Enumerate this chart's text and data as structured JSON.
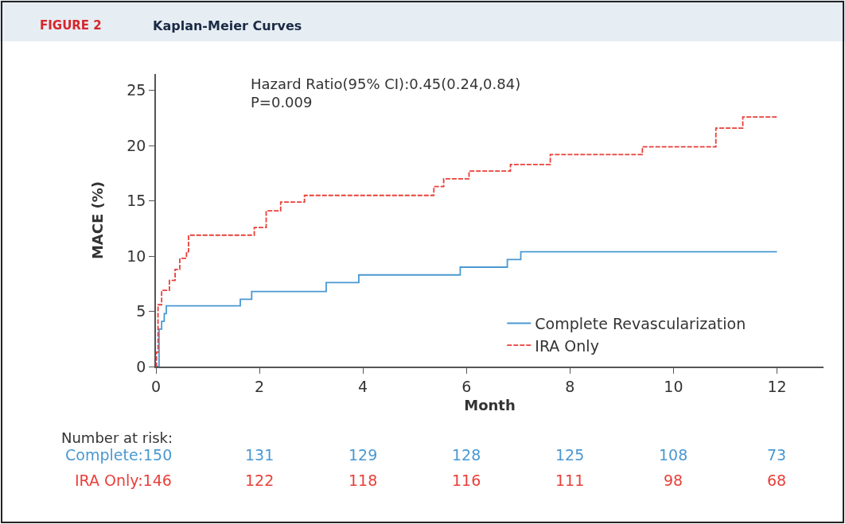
{
  "chart_data": {
    "type": "step",
    "title": "Kaplan-Meier Curves",
    "xlabel": "Month",
    "ylabel": "MACE (%)",
    "xlim": [
      0,
      12.9
    ],
    "xticks": [
      0,
      2,
      4,
      6,
      8,
      10,
      12
    ],
    "ylim": [
      0,
      26.5
    ],
    "yticks": [
      0,
      5,
      10,
      15,
      20,
      25
    ],
    "legend": "bottom right",
    "marker": "none",
    "series": [
      {
        "name": "Complete Revascularization",
        "color": "#4a98d2",
        "line_style": "solid",
        "x": [
          0,
          0.06,
          0.11,
          0.16,
          0.2,
          1.63,
          1.85,
          3.29,
          3.92,
          5.88,
          6.79,
          7.05,
          12
        ],
        "values": [
          0,
          3.4,
          4.1,
          4.8,
          5.5,
          6.1,
          6.8,
          7.6,
          8.3,
          9.0,
          9.7,
          10.4,
          10.4
        ]
      },
      {
        "name": "IRA Only",
        "color": "#e8403a",
        "line_style": "dashed",
        "x": [
          0,
          0.01,
          0.04,
          0.11,
          0.26,
          0.37,
          0.46,
          0.59,
          0.63,
          1.9,
          2.13,
          2.41,
          2.87,
          5.37,
          5.56,
          6.05,
          6.85,
          7.62,
          9.4,
          10.82,
          11.34,
          12
        ],
        "values": [
          0,
          1.3,
          5.6,
          6.9,
          7.8,
          8.8,
          9.8,
          10.4,
          11.9,
          12.6,
          14.1,
          14.9,
          15.5,
          16.3,
          17.0,
          17.7,
          18.3,
          19.2,
          19.9,
          21.6,
          22.6,
          22.6
        ]
      }
    ],
    "annotations": [
      "FIGURE 2",
      "Hazard Ratio(95% CI):0.45(0.24,0.84)\nP=0.009",
      "Number at risk:",
      "Complete:150",
      "131",
      "129",
      "128",
      "125",
      "108",
      "73",
      "IRA Only:146",
      "122",
      "118",
      "116",
      "111",
      "98",
      "68"
    ]
  }
}
